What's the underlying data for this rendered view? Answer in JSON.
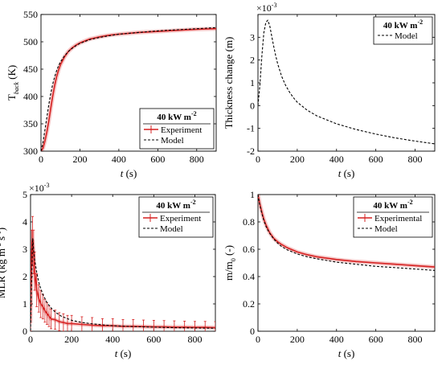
{
  "colors": {
    "experiment": "#d62020",
    "model": "#000000",
    "axes": "#000000",
    "background": "#ffffff"
  },
  "chart_data": [
    {
      "type": "line",
      "ylabel": "T_back (K)",
      "xlabel": "t (s)",
      "xlim": [
        0,
        900
      ],
      "ylim": [
        300,
        550
      ],
      "xticks": [
        0,
        200,
        400,
        600,
        800
      ],
      "yticks": [
        300,
        350,
        400,
        450,
        500,
        550
      ],
      "exponent_label": "",
      "legend": {
        "title": "40 kW m^-2",
        "placement": "bottom-right",
        "entries": [
          "Experiment",
          "Model"
        ]
      },
      "series": [
        {
          "name": "Experiment",
          "style": "experiment",
          "x": [
            0,
            10,
            20,
            30,
            40,
            50,
            60,
            70,
            80,
            90,
            100,
            120,
            140,
            160,
            180,
            200,
            250,
            300,
            350,
            400,
            500,
            600,
            700,
            800,
            900
          ],
          "y": [
            300,
            305,
            318,
            335,
            355,
            378,
            400,
            420,
            436,
            448,
            458,
            472,
            482,
            489,
            494,
            498,
            505,
            509,
            512,
            514,
            517,
            519,
            521,
            523,
            524
          ]
        },
        {
          "name": "Model",
          "style": "model",
          "x": [
            0,
            10,
            20,
            30,
            40,
            50,
            60,
            70,
            80,
            90,
            100,
            120,
            140,
            160,
            180,
            200,
            250,
            300,
            350,
            400,
            500,
            600,
            700,
            800,
            900
          ],
          "y": [
            300,
            315,
            338,
            362,
            385,
            405,
            422,
            436,
            447,
            456,
            463,
            474,
            482,
            488,
            493,
            497,
            504,
            508,
            511,
            514,
            517,
            520,
            522,
            524,
            526
          ]
        }
      ]
    },
    {
      "type": "line",
      "ylabel": "Thickness change (m)",
      "xlabel": "t (s)",
      "xlim": [
        0,
        900
      ],
      "ylim": [
        -2,
        4
      ],
      "xticks": [
        0,
        200,
        400,
        600,
        800
      ],
      "yticks": [
        -2,
        -1,
        0,
        1,
        2,
        3
      ],
      "exponent_label": "×10^-3",
      "legend": {
        "title": "40 kW m^-2",
        "placement": "top-right",
        "entries": [
          "Model"
        ]
      },
      "series": [
        {
          "name": "Model",
          "style": "model",
          "x": [
            0,
            10,
            20,
            30,
            40,
            50,
            60,
            70,
            80,
            90,
            100,
            120,
            140,
            160,
            180,
            200,
            250,
            300,
            400,
            500,
            600,
            700,
            800,
            900
          ],
          "y": [
            0,
            0.9,
            2.2,
            3.2,
            3.65,
            3.75,
            3.5,
            3.05,
            2.6,
            2.2,
            1.85,
            1.3,
            0.9,
            0.6,
            0.35,
            0.15,
            -0.2,
            -0.45,
            -0.8,
            -1.05,
            -1.25,
            -1.42,
            -1.56,
            -1.68
          ]
        }
      ]
    },
    {
      "type": "line",
      "ylabel": "MLR (kg m^-2 s^-1)",
      "xlabel": "t (s)",
      "xlim": [
        0,
        900
      ],
      "ylim": [
        0,
        5
      ],
      "xticks": [
        0,
        200,
        400,
        600,
        800
      ],
      "yticks": [
        0,
        1,
        2,
        3,
        4,
        5
      ],
      "exponent_label": "×10^-3",
      "legend": {
        "title": "40 kW m^-2",
        "placement": "top-right",
        "entries": [
          "Experiment",
          "Model"
        ]
      },
      "series": [
        {
          "name": "Experiment",
          "style": "experiment",
          "x": [
            0,
            5,
            10,
            15,
            20,
            30,
            40,
            50,
            60,
            70,
            80,
            90,
            100,
            120,
            140,
            160,
            180,
            200,
            250,
            300,
            350,
            400,
            450,
            500,
            550,
            600,
            650,
            700,
            750,
            800,
            850,
            900
          ],
          "y": [
            0.3,
            2.9,
            3.3,
            2.9,
            2.2,
            1.5,
            1.2,
            1.0,
            0.9,
            0.75,
            0.65,
            0.55,
            0.45,
            0.42,
            0.35,
            0.32,
            0.28,
            0.28,
            0.25,
            0.22,
            0.2,
            0.2,
            0.18,
            0.18,
            0.17,
            0.16,
            0.16,
            0.15,
            0.15,
            0.14,
            0.14,
            0.13
          ],
          "err": [
            0.3,
            0.8,
            0.9,
            0.8,
            0.7,
            0.6,
            0.5,
            0.5,
            0.45,
            0.42,
            0.4,
            0.38,
            0.36,
            0.35,
            0.33,
            0.32,
            0.3,
            0.3,
            0.28,
            0.28,
            0.26,
            0.26,
            0.25,
            0.25,
            0.24,
            0.24,
            0.23,
            0.23,
            0.22,
            0.22,
            0.22,
            0.22
          ]
        },
        {
          "name": "Model",
          "style": "model",
          "x": [
            0,
            10,
            20,
            30,
            40,
            50,
            60,
            80,
            100,
            120,
            150,
            200,
            250,
            300,
            400,
            500,
            600,
            700,
            800,
            900
          ],
          "y": [
            0.02,
            3.4,
            2.6,
            2.15,
            1.8,
            1.55,
            1.35,
            1.05,
            0.85,
            0.7,
            0.55,
            0.4,
            0.32,
            0.27,
            0.2,
            0.17,
            0.15,
            0.13,
            0.12,
            0.11
          ]
        }
      ]
    },
    {
      "type": "line",
      "ylabel": "m/m_0 (-)",
      "xlabel": "t (s)",
      "xlim": [
        0,
        900
      ],
      "ylim": [
        0,
        1
      ],
      "xticks": [
        0,
        200,
        400,
        600,
        800
      ],
      "yticks": [
        0,
        0.2,
        0.4,
        0.6,
        0.8,
        1
      ],
      "exponent_label": "",
      "legend": {
        "title": "40 kW m^-2",
        "placement": "top-right",
        "entries": [
          "Experimental",
          "Model"
        ]
      },
      "series": [
        {
          "name": "Experimental",
          "style": "experiment",
          "x": [
            0,
            10,
            20,
            30,
            40,
            50,
            60,
            80,
            100,
            120,
            150,
            200,
            250,
            300,
            400,
            500,
            600,
            700,
            800,
            900
          ],
          "y": [
            1.0,
            0.93,
            0.87,
            0.82,
            0.78,
            0.75,
            0.72,
            0.68,
            0.655,
            0.635,
            0.61,
            0.58,
            0.56,
            0.545,
            0.525,
            0.51,
            0.5,
            0.49,
            0.48,
            0.47
          ]
        },
        {
          "name": "Model",
          "style": "model",
          "x": [
            0,
            10,
            20,
            30,
            40,
            50,
            60,
            80,
            100,
            120,
            150,
            200,
            250,
            300,
            400,
            500,
            600,
            700,
            800,
            900
          ],
          "y": [
            1.0,
            0.92,
            0.86,
            0.81,
            0.77,
            0.74,
            0.715,
            0.675,
            0.645,
            0.62,
            0.595,
            0.565,
            0.545,
            0.53,
            0.505,
            0.49,
            0.475,
            0.465,
            0.455,
            0.445
          ]
        }
      ]
    }
  ]
}
